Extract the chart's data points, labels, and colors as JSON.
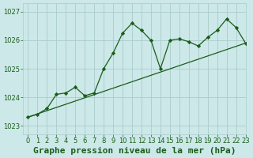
{
  "title": "Graphe pression niveau de la mer (hPa)",
  "background_color": "#cce8e8",
  "grid_color": "#aacccc",
  "line_color": "#1a5c1a",
  "marker_color": "#1a5c1a",
  "xlim": [
    -0.5,
    23
  ],
  "ylim": [
    1022.7,
    1027.3
  ],
  "yticks": [
    1023,
    1024,
    1025,
    1026,
    1027
  ],
  "xticks": [
    0,
    1,
    2,
    3,
    4,
    5,
    6,
    7,
    8,
    9,
    10,
    11,
    12,
    13,
    14,
    15,
    16,
    17,
    18,
    19,
    20,
    21,
    22,
    23
  ],
  "series1_x": [
    0,
    1,
    2,
    3,
    4,
    5,
    6,
    7,
    8,
    9,
    10,
    11,
    12,
    13,
    14,
    15,
    16,
    17,
    18,
    19,
    20,
    21,
    22,
    23
  ],
  "series1_y": [
    1023.3,
    1023.4,
    1023.6,
    1024.1,
    1024.15,
    1024.35,
    1024.05,
    1024.15,
    1025.0,
    1025.55,
    1026.25,
    1026.6,
    1026.35,
    1026.0,
    1025.0,
    1026.0,
    1026.05,
    1025.95,
    1025.8,
    1026.1,
    1026.35,
    1026.75,
    1026.45,
    1025.9
  ],
  "series2_x": [
    0,
    23
  ],
  "series2_y": [
    1023.3,
    1025.9
  ],
  "title_fontsize": 8,
  "tick_fontsize": 6
}
